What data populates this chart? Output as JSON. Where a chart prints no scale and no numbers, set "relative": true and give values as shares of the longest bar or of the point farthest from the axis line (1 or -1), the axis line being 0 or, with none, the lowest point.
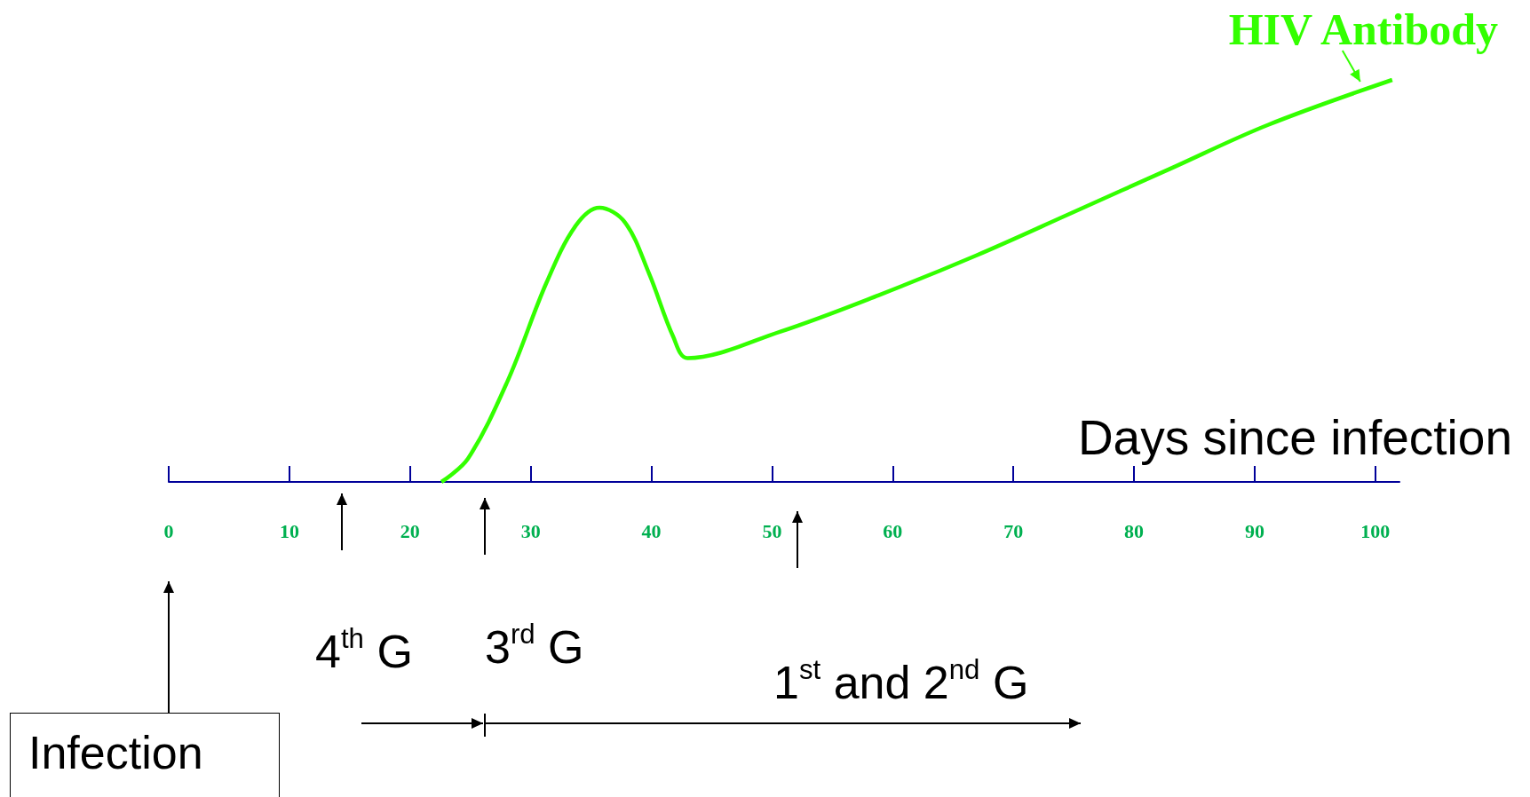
{
  "chart_data": {
    "type": "line",
    "relative": true,
    "xlabel": "Days since infection",
    "xlim": [
      0,
      102
    ],
    "xticks": [
      0,
      10,
      20,
      30,
      40,
      50,
      60,
      70,
      80,
      90,
      100
    ],
    "marker": "none",
    "line_style": "solid",
    "series": [
      {
        "name": "HIV Antibody",
        "color": "#33ff00",
        "x": [
          22.6,
          24.8,
          28.1,
          31.3,
          33.7,
          35.7,
          37.8,
          39.8,
          41.8,
          43.0,
          50.7,
          58.8,
          66.9,
          74.9,
          83.0,
          91.1,
          101.4
        ],
        "values": [
          0,
          0.058,
          0.252,
          0.495,
          0.636,
          0.682,
          0.646,
          0.519,
          0.362,
          0.308,
          0.374,
          0.464,
          0.563,
          0.67,
          0.779,
          0.888,
          1
        ]
      }
    ],
    "annotations": [
      "Infection",
      "4$^{th}$ G",
      "3$^{rd}$ G",
      "1$^{st}$ and 2$^{nd}$ G"
    ]
  }
}
